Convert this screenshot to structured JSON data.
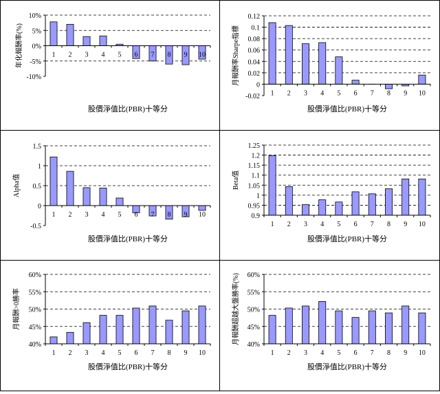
{
  "colors": {
    "bar_fill": "#9999ff",
    "bar_stroke": "#000000",
    "grid": "#000000"
  },
  "chart_data": [
    {
      "type": "bar",
      "categories": [
        "1",
        "2",
        "3",
        "4",
        "5",
        "6",
        "7",
        "8",
        "9",
        "10"
      ],
      "values": [
        7.8,
        7.0,
        3.0,
        3.2,
        0.5,
        -4.2,
        -5.0,
        -6.0,
        -6.2,
        -4.4
      ],
      "ylim": [
        -10,
        10
      ],
      "yticks": [
        -10,
        -5,
        0,
        5,
        10
      ],
      "ytick_labels": [
        "-10%",
        "-5%",
        "0%",
        "5%",
        "10%"
      ],
      "xlabel": "股價淨值比(PBR)十等分",
      "ylabel": "年化報酬率(%)",
      "category_labels_at_zero": true,
      "grid": "dashed"
    },
    {
      "type": "bar",
      "categories": [
        "1",
        "2",
        "3",
        "4",
        "5",
        "6",
        "7",
        "8",
        "9",
        "10"
      ],
      "values": [
        0.108,
        0.103,
        0.071,
        0.073,
        0.048,
        0.007,
        0.0,
        -0.008,
        -0.003,
        0.016
      ],
      "ylim": [
        -0.02,
        0.12
      ],
      "yticks": [
        -0.02,
        0,
        0.02,
        0.04,
        0.06,
        0.08,
        0.1,
        0.12
      ],
      "ytick_labels": [
        "-0.02",
        "0",
        "0.02",
        "0.04",
        "0.06",
        "0.08",
        "0.1",
        "0.12"
      ],
      "xlabel": "股價淨值比(PBR)十等分",
      "ylabel": "月報酬率Sharpe指標",
      "category_labels_at_zero": true,
      "grid": "dashed"
    },
    {
      "type": "bar",
      "categories": [
        "1",
        "2",
        "3",
        "4",
        "5",
        "6",
        "7",
        "8",
        "9",
        "10"
      ],
      "values": [
        1.22,
        0.86,
        0.45,
        0.44,
        0.19,
        -0.18,
        -0.26,
        -0.34,
        -0.28,
        -0.12
      ],
      "ylim": [
        -0.5,
        1.5
      ],
      "yticks": [
        -0.5,
        0,
        0.5,
        1,
        1.5
      ],
      "ytick_labels": [
        "-0.5",
        "0",
        "0.5",
        "1",
        "1.5"
      ],
      "xlabel": "股價淨值比(PBR)十等分",
      "ylabel": "Alpha值",
      "category_labels_at_zero": true,
      "grid": "dashed"
    },
    {
      "type": "bar",
      "categories": [
        "1",
        "2",
        "3",
        "4",
        "5",
        "6",
        "7",
        "8",
        "9",
        "10"
      ],
      "values": [
        1.198,
        1.043,
        0.953,
        0.977,
        0.966,
        1.017,
        1.007,
        1.032,
        1.081,
        1.081
      ],
      "ylim": [
        0.9,
        1.25
      ],
      "yticks": [
        0.9,
        0.95,
        1,
        1.05,
        1.1,
        1.15,
        1.2,
        1.25
      ],
      "ytick_labels": [
        "0.9",
        "0.95",
        "1",
        "1.05",
        "1.1",
        "1.15",
        "1.2",
        "1.25"
      ],
      "xlabel": "股價淨值比(PBR)十等分",
      "ylabel": "Beta值",
      "category_labels_at_zero": false,
      "grid": "dashed"
    },
    {
      "type": "bar",
      "categories": [
        "1",
        "2",
        "3",
        "4",
        "5",
        "6",
        "7",
        "8",
        "9",
        "10"
      ],
      "values": [
        42.0,
        43.3,
        46.1,
        48.2,
        48.2,
        50.3,
        50.9,
        46.8,
        49.5,
        50.9
      ],
      "ylim": [
        40,
        60
      ],
      "yticks": [
        40,
        45,
        50,
        55,
        60
      ],
      "ytick_labels": [
        "40%",
        "45%",
        "50%",
        "55%",
        "60%"
      ],
      "xlabel": "股價淨值比(PBR)十等分",
      "ylabel": "月報酬>0勝率",
      "category_labels_at_zero": false,
      "grid": "dashed"
    },
    {
      "type": "bar",
      "categories": [
        "1",
        "2",
        "3",
        "4",
        "5",
        "6",
        "7",
        "8",
        "9",
        "10"
      ],
      "values": [
        48.2,
        50.3,
        50.9,
        52.2,
        49.5,
        47.6,
        49.5,
        48.9,
        50.9,
        48.9
      ],
      "ylim": [
        40,
        60
      ],
      "yticks": [
        40,
        45,
        50,
        55,
        60
      ],
      "ytick_labels": [
        "40%",
        "45%",
        "50%",
        "55%",
        "60%"
      ],
      "xlabel": "股價淨值比(PBR)十等分",
      "ylabel": "月報酬超越大盤勝率(%)",
      "category_labels_at_zero": false,
      "grid": "dashed"
    }
  ]
}
